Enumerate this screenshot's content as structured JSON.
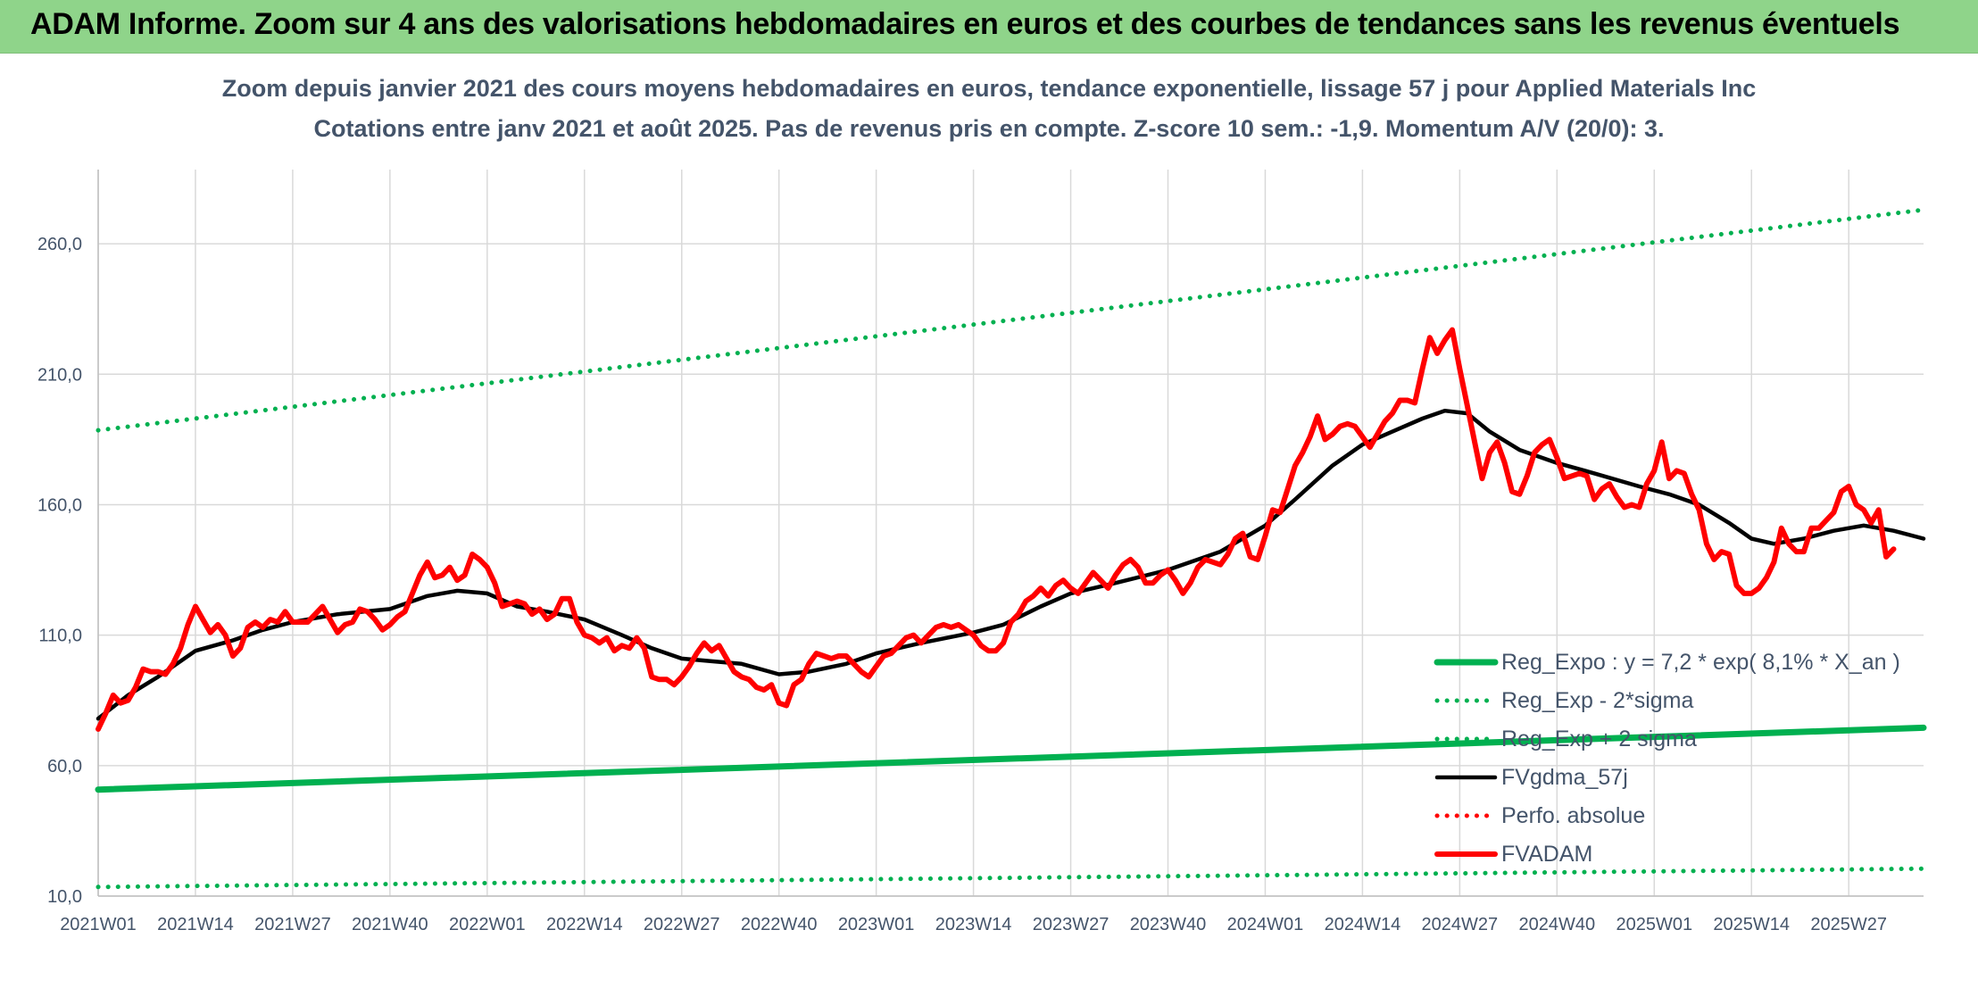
{
  "banner": {
    "title": "ADAM Informe. Zoom sur 4 ans des valorisations hebdomadaires en euros et des courbes de tendances sans les revenus éventuels"
  },
  "colors": {
    "banner_bg": "#8fd48a",
    "reg_expo": "#00b050",
    "fvgdma": "#000000",
    "fvadam": "#ff0000",
    "perfo": "#ff0000"
  },
  "chart_data": {
    "type": "line",
    "title": "Zoom depuis janvier 2021 des cours moyens hebdomadaires en euros, tendance exponentielle, lissage 57 j pour Applied Materials Inc",
    "subtitle": "Cotations entre janv 2021 et août 2025. Pas de revenus pris en compte. Z-score 10 sem.: -1,9. Momentum A/V (20/0): 3.",
    "ylim": [
      10,
      285
    ],
    "y_ticks": [
      "10,0",
      "60,0",
      "110,0",
      "160,0",
      "210,0",
      "260,0"
    ],
    "y_tick_values": [
      10,
      60,
      110,
      160,
      210,
      260
    ],
    "x_ticks": [
      "2021W01",
      "2021W14",
      "2021W27",
      "2021W40",
      "2022W01",
      "2022W14",
      "2022W27",
      "2022W40",
      "2023W01",
      "2023W14",
      "2023W27",
      "2023W40",
      "2024W01",
      "2024W14",
      "2024W27",
      "2024W40",
      "2025W01",
      "2025W14",
      "2025W27"
    ],
    "x_tick_index": [
      0,
      13,
      26,
      39,
      52,
      65,
      78,
      91,
      104,
      117,
      130,
      143,
      156,
      169,
      182,
      195,
      208,
      221,
      234
    ],
    "n_weeks": 245,
    "grid": true,
    "legend_position": "bottom-right",
    "series": [
      {
        "name": "Reg_Expo : y = 7,2 * exp( 8,1% *  X_an )",
        "style": "solid-thick",
        "color": "#00b050",
        "points": [
          [
            0,
            50.8
          ],
          [
            244,
            74.5
          ]
        ]
      },
      {
        "name": "Reg_Exp - 2*sigma",
        "style": "dotted",
        "color": "#00b050",
        "points": [
          [
            0,
            13.5
          ],
          [
            244,
            20.5
          ]
        ]
      },
      {
        "name": "Reg_Exp + 2 sigma",
        "style": "dotted",
        "color": "#00b050",
        "points": [
          [
            0,
            188.5
          ],
          [
            244,
            273
          ]
        ]
      },
      {
        "name": "FVgdma_57j",
        "style": "solid",
        "color": "#000000",
        "points": [
          [
            0,
            78
          ],
          [
            4,
            87
          ],
          [
            8,
            94
          ],
          [
            13,
            104
          ],
          [
            18,
            108
          ],
          [
            22,
            112
          ],
          [
            26,
            115
          ],
          [
            32,
            118
          ],
          [
            39,
            120
          ],
          [
            44,
            125
          ],
          [
            48,
            127
          ],
          [
            52,
            126
          ],
          [
            56,
            121
          ],
          [
            60,
            119
          ],
          [
            65,
            116
          ],
          [
            70,
            110
          ],
          [
            74,
            105
          ],
          [
            78,
            101
          ],
          [
            82,
            100
          ],
          [
            86,
            99
          ],
          [
            91,
            95
          ],
          [
            95,
            96
          ],
          [
            100,
            99
          ],
          [
            104,
            103
          ],
          [
            110,
            107
          ],
          [
            117,
            111
          ],
          [
            121,
            114
          ],
          [
            126,
            121
          ],
          [
            130,
            126
          ],
          [
            136,
            130
          ],
          [
            143,
            135
          ],
          [
            150,
            142
          ],
          [
            156,
            152
          ],
          [
            160,
            162
          ],
          [
            165,
            175
          ],
          [
            169,
            183
          ],
          [
            173,
            188
          ],
          [
            177,
            193
          ],
          [
            180,
            196
          ],
          [
            183,
            195
          ],
          [
            186,
            188
          ],
          [
            190,
            181
          ],
          [
            195,
            176
          ],
          [
            200,
            172
          ],
          [
            206,
            167
          ],
          [
            210,
            164
          ],
          [
            214,
            160
          ],
          [
            218,
            153
          ],
          [
            221,
            147
          ],
          [
            224,
            145
          ],
          [
            228,
            147
          ],
          [
            232,
            150
          ],
          [
            236,
            152
          ],
          [
            240,
            150
          ],
          [
            244,
            147
          ]
        ]
      },
      {
        "name": "Perfo. absolue",
        "style": "dotted",
        "color": "#ff0000",
        "points": []
      },
      {
        "name": "FVADAM",
        "style": "solid-thick",
        "color": "#ff0000",
        "points": [
          [
            0,
            74
          ],
          [
            1,
            80
          ],
          [
            2,
            87
          ],
          [
            3,
            84
          ],
          [
            4,
            85
          ],
          [
            5,
            90
          ],
          [
            6,
            97
          ],
          [
            7,
            96
          ],
          [
            8,
            96
          ],
          [
            9,
            95
          ],
          [
            10,
            99
          ],
          [
            11,
            105
          ],
          [
            12,
            114
          ],
          [
            13,
            121
          ],
          [
            14,
            116
          ],
          [
            15,
            111
          ],
          [
            16,
            114
          ],
          [
            17,
            110
          ],
          [
            18,
            102
          ],
          [
            19,
            105
          ],
          [
            20,
            113
          ],
          [
            21,
            115
          ],
          [
            22,
            113
          ],
          [
            23,
            116
          ],
          [
            24,
            115
          ],
          [
            25,
            119
          ],
          [
            26,
            115
          ],
          [
            27,
            115
          ],
          [
            28,
            115
          ],
          [
            29,
            118
          ],
          [
            30,
            121
          ],
          [
            31,
            116
          ],
          [
            32,
            111
          ],
          [
            33,
            114
          ],
          [
            34,
            115
          ],
          [
            35,
            120
          ],
          [
            36,
            119
          ],
          [
            37,
            116
          ],
          [
            38,
            112
          ],
          [
            39,
            114
          ],
          [
            40,
            117
          ],
          [
            41,
            119
          ],
          [
            42,
            126
          ],
          [
            43,
            133
          ],
          [
            44,
            138
          ],
          [
            45,
            132
          ],
          [
            46,
            133
          ],
          [
            47,
            136
          ],
          [
            48,
            131
          ],
          [
            49,
            133
          ],
          [
            50,
            141
          ],
          [
            51,
            139
          ],
          [
            52,
            136
          ],
          [
            53,
            130
          ],
          [
            54,
            121
          ],
          [
            55,
            122
          ],
          [
            56,
            123
          ],
          [
            57,
            122
          ],
          [
            58,
            118
          ],
          [
            59,
            120
          ],
          [
            60,
            116
          ],
          [
            61,
            118
          ],
          [
            62,
            124
          ],
          [
            63,
            124
          ],
          [
            64,
            115
          ],
          [
            65,
            110
          ],
          [
            66,
            109
          ],
          [
            67,
            107
          ],
          [
            68,
            109
          ],
          [
            69,
            104
          ],
          [
            70,
            106
          ],
          [
            71,
            105
          ],
          [
            72,
            109
          ],
          [
            73,
            105
          ],
          [
            74,
            94
          ],
          [
            75,
            93
          ],
          [
            76,
            93
          ],
          [
            77,
            91
          ],
          [
            78,
            94
          ],
          [
            79,
            98
          ],
          [
            80,
            103
          ],
          [
            81,
            107
          ],
          [
            82,
            104
          ],
          [
            83,
            106
          ],
          [
            84,
            101
          ],
          [
            85,
            96
          ],
          [
            86,
            94
          ],
          [
            87,
            93
          ],
          [
            88,
            90
          ],
          [
            89,
            89
          ],
          [
            90,
            91
          ],
          [
            91,
            84
          ],
          [
            92,
            83
          ],
          [
            93,
            91
          ],
          [
            94,
            93
          ],
          [
            95,
            99
          ],
          [
            96,
            103
          ],
          [
            97,
            102
          ],
          [
            98,
            101
          ],
          [
            99,
            102
          ],
          [
            100,
            102
          ],
          [
            101,
            99
          ],
          [
            102,
            96
          ],
          [
            103,
            94
          ],
          [
            104,
            98
          ],
          [
            105,
            102
          ],
          [
            106,
            103
          ],
          [
            107,
            106
          ],
          [
            108,
            109
          ],
          [
            109,
            110
          ],
          [
            110,
            107
          ],
          [
            111,
            110
          ],
          [
            112,
            113
          ],
          [
            113,
            114
          ],
          [
            114,
            113
          ],
          [
            115,
            114
          ],
          [
            116,
            112
          ],
          [
            117,
            110
          ],
          [
            118,
            106
          ],
          [
            119,
            104
          ],
          [
            120,
            104
          ],
          [
            121,
            107
          ],
          [
            122,
            115
          ],
          [
            123,
            118
          ],
          [
            124,
            123
          ],
          [
            125,
            125
          ],
          [
            126,
            128
          ],
          [
            127,
            125
          ],
          [
            128,
            129
          ],
          [
            129,
            131
          ],
          [
            130,
            128
          ],
          [
            131,
            126
          ],
          [
            132,
            130
          ],
          [
            133,
            134
          ],
          [
            134,
            131
          ],
          [
            135,
            128
          ],
          [
            136,
            133
          ],
          [
            137,
            137
          ],
          [
            138,
            139
          ],
          [
            139,
            136
          ],
          [
            140,
            130
          ],
          [
            141,
            130
          ],
          [
            142,
            133
          ],
          [
            143,
            135
          ],
          [
            144,
            131
          ],
          [
            145,
            126
          ],
          [
            146,
            130
          ],
          [
            147,
            136
          ],
          [
            148,
            139
          ],
          [
            149,
            138
          ],
          [
            150,
            137
          ],
          [
            151,
            141
          ],
          [
            152,
            147
          ],
          [
            153,
            149
          ],
          [
            154,
            140
          ],
          [
            155,
            139
          ],
          [
            156,
            148
          ],
          [
            157,
            158
          ],
          [
            158,
            157
          ],
          [
            159,
            166
          ],
          [
            160,
            175
          ],
          [
            161,
            180
          ],
          [
            162,
            186
          ],
          [
            163,
            194
          ],
          [
            164,
            185
          ],
          [
            165,
            187
          ],
          [
            166,
            190
          ],
          [
            167,
            191
          ],
          [
            168,
            190
          ],
          [
            169,
            186
          ],
          [
            170,
            182
          ],
          [
            171,
            187
          ],
          [
            172,
            192
          ],
          [
            173,
            195
          ],
          [
            174,
            200
          ],
          [
            175,
            200
          ],
          [
            176,
            199
          ],
          [
            177,
            212
          ],
          [
            178,
            224
          ],
          [
            179,
            218
          ],
          [
            180,
            223
          ],
          [
            181,
            227
          ],
          [
            182,
            212
          ],
          [
            183,
            198
          ],
          [
            184,
            184
          ],
          [
            185,
            170
          ],
          [
            186,
            180
          ],
          [
            187,
            184
          ],
          [
            188,
            176
          ],
          [
            189,
            165
          ],
          [
            190,
            164
          ],
          [
            191,
            171
          ],
          [
            192,
            180
          ],
          [
            193,
            183
          ],
          [
            194,
            185
          ],
          [
            195,
            178
          ],
          [
            196,
            170
          ],
          [
            197,
            171
          ],
          [
            198,
            172
          ],
          [
            199,
            171
          ],
          [
            200,
            162
          ],
          [
            201,
            166
          ],
          [
            202,
            168
          ],
          [
            203,
            163
          ],
          [
            204,
            159
          ],
          [
            205,
            160
          ],
          [
            206,
            159
          ],
          [
            207,
            168
          ],
          [
            208,
            173
          ],
          [
            209,
            184
          ],
          [
            210,
            170
          ],
          [
            211,
            173
          ],
          [
            212,
            172
          ],
          [
            213,
            164
          ],
          [
            214,
            158
          ],
          [
            215,
            145
          ],
          [
            216,
            139
          ],
          [
            217,
            142
          ],
          [
            218,
            141
          ],
          [
            219,
            129
          ],
          [
            220,
            126
          ],
          [
            221,
            126
          ],
          [
            222,
            128
          ],
          [
            223,
            132
          ],
          [
            224,
            138
          ],
          [
            225,
            151
          ],
          [
            226,
            145
          ],
          [
            227,
            142
          ],
          [
            228,
            142
          ],
          [
            229,
            151
          ],
          [
            230,
            151
          ],
          [
            231,
            154
          ],
          [
            232,
            157
          ],
          [
            233,
            165
          ],
          [
            234,
            167
          ],
          [
            235,
            160
          ],
          [
            236,
            158
          ],
          [
            237,
            153
          ],
          [
            238,
            158
          ],
          [
            239,
            140
          ],
          [
            240,
            143
          ]
        ]
      }
    ]
  }
}
